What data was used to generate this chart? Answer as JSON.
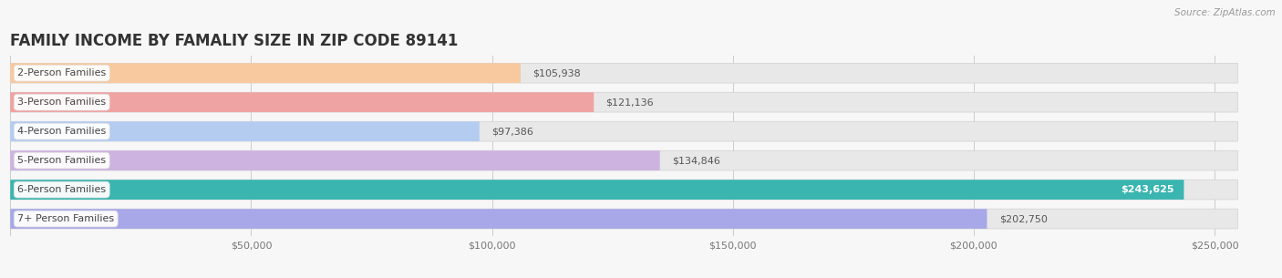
{
  "title": "FAMILY INCOME BY FAMALIY SIZE IN ZIP CODE 89141",
  "source": "Source: ZipAtlas.com",
  "categories": [
    "2-Person Families",
    "3-Person Families",
    "4-Person Families",
    "5-Person Families",
    "6-Person Families",
    "7+ Person Families"
  ],
  "values": [
    105938,
    121136,
    97386,
    134846,
    243625,
    202750
  ],
  "bar_colors": [
    "#f8c99e",
    "#f0a3a3",
    "#b3ccf0",
    "#ccb3e0",
    "#3ab5b0",
    "#a8a8e8"
  ],
  "label_colors": [
    "#555555",
    "#555555",
    "#555555",
    "#555555",
    "#ffffff",
    "#ffffff"
  ],
  "xlim": [
    0,
    260000
  ],
  "xticks": [
    0,
    50000,
    100000,
    150000,
    200000,
    250000
  ],
  "xtick_labels": [
    "",
    "$50,000",
    "$100,000",
    "$150,000",
    "$200,000",
    "$250,000"
  ],
  "background_color": "#f7f7f7",
  "bar_bg_color": "#e8e8e8",
  "title_fontsize": 12,
  "bar_height": 0.68,
  "value_inside_threshold": 215000
}
